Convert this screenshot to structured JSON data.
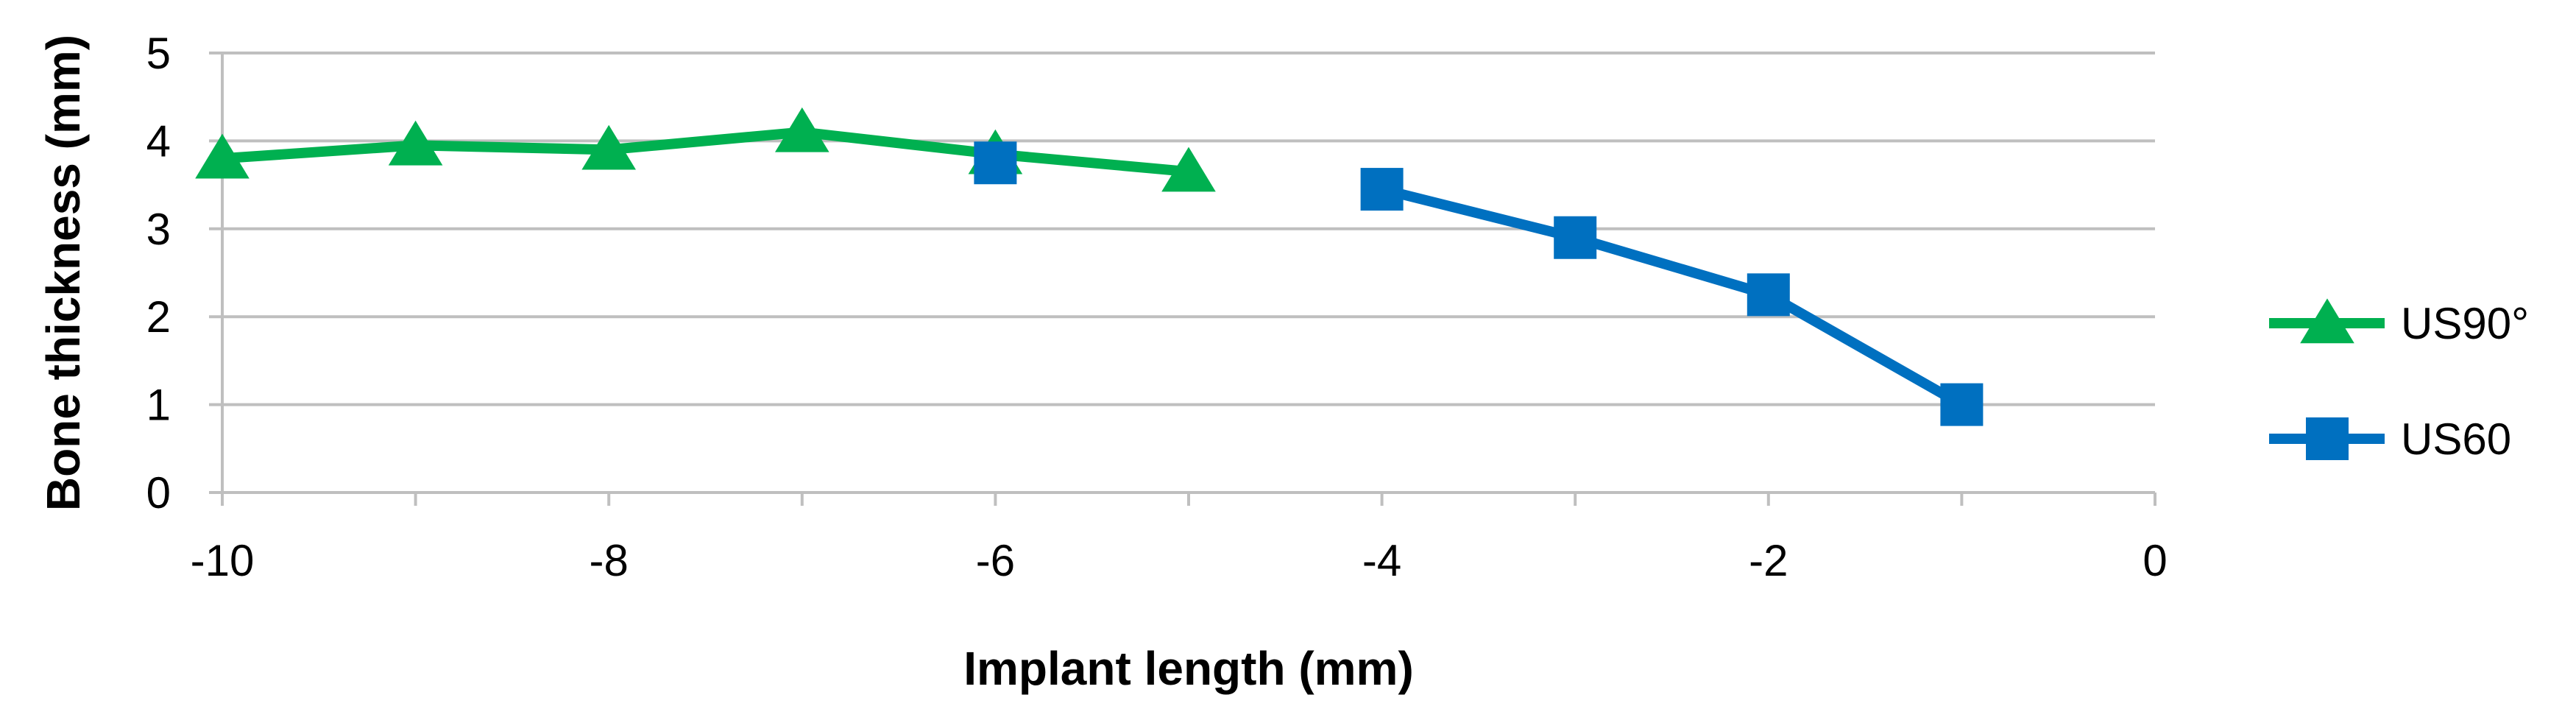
{
  "chart_data": {
    "type": "line",
    "title": "",
    "xlabel": "Implant length (mm)",
    "ylabel": "Bone thickness (mm)",
    "xlim": [
      -10,
      0
    ],
    "ylim": [
      0,
      5
    ],
    "x_ticks": [
      -10,
      -8,
      -6,
      -4,
      -2,
      0
    ],
    "y_ticks": [
      0,
      1,
      2,
      3,
      4,
      5
    ],
    "grid": "horizontal",
    "legend_position": "right",
    "series": [
      {
        "name": "US90°",
        "color": "#00B050",
        "marker": "triangle",
        "x": [
          -10,
          -9,
          -8,
          -7,
          -6,
          -5
        ],
        "y": [
          3.8,
          3.95,
          3.9,
          4.1,
          3.85,
          3.65
        ]
      },
      {
        "name": "US60",
        "color": "#0070C0",
        "marker": "square",
        "x": [
          -6,
          -4,
          -3,
          -2,
          -1
        ],
        "y": [
          3.75,
          3.45,
          2.9,
          2.25,
          1.0
        ],
        "connect_segments": [
          [
            1,
            2
          ],
          [
            2,
            3
          ],
          [
            3,
            4
          ]
        ]
      }
    ]
  }
}
